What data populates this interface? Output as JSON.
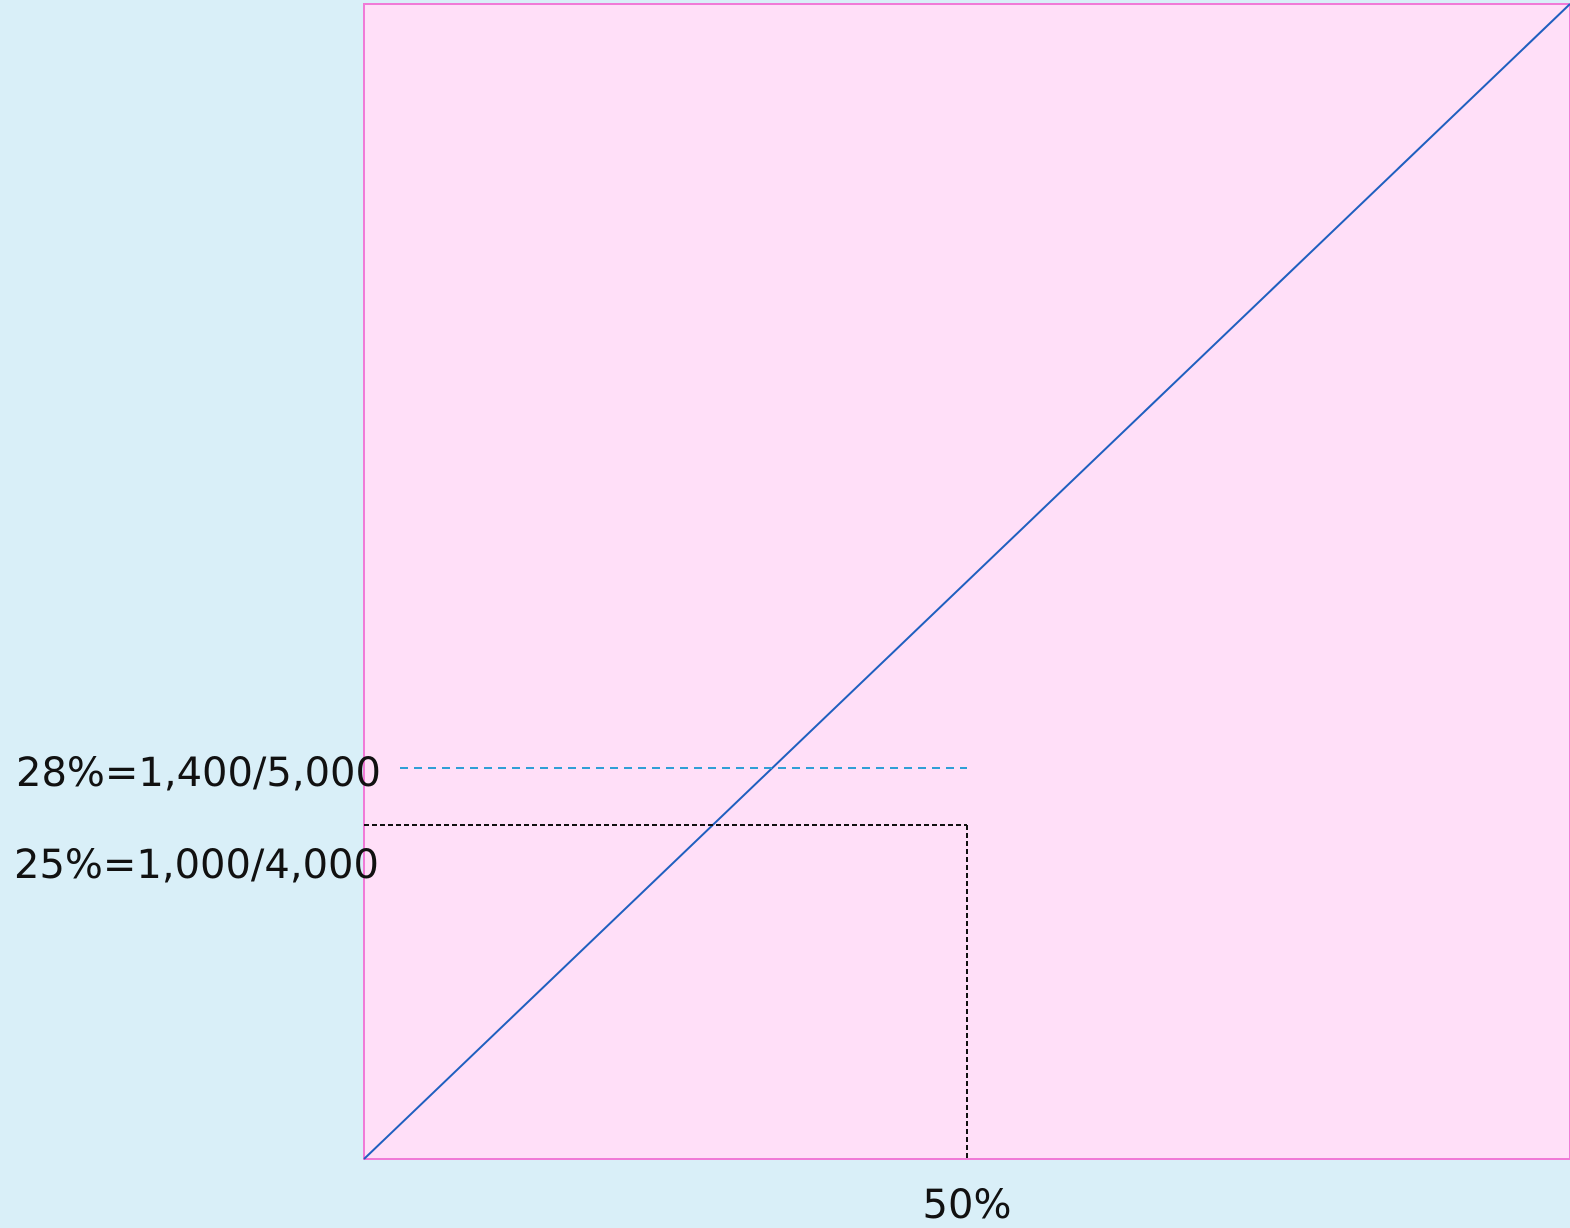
{
  "diagram": {
    "labels": {
      "upper_y_label": "28%=1,400/5,000",
      "lower_y_label": "25%=1,000/4,000",
      "x_label": "50%"
    },
    "colors": {
      "page_background": "#d9eff8",
      "panel_fill": "#ffdff8",
      "panel_border": "#f07ad7",
      "diagonal_line": "#1f5fbf",
      "upper_guide_line": "#2f9fd6",
      "lower_guide_line": "#111111",
      "text": "#111111"
    },
    "values": {
      "x_marker_percent": 50,
      "upper_y_percent": 28,
      "lower_y_percent": 25
    }
  }
}
